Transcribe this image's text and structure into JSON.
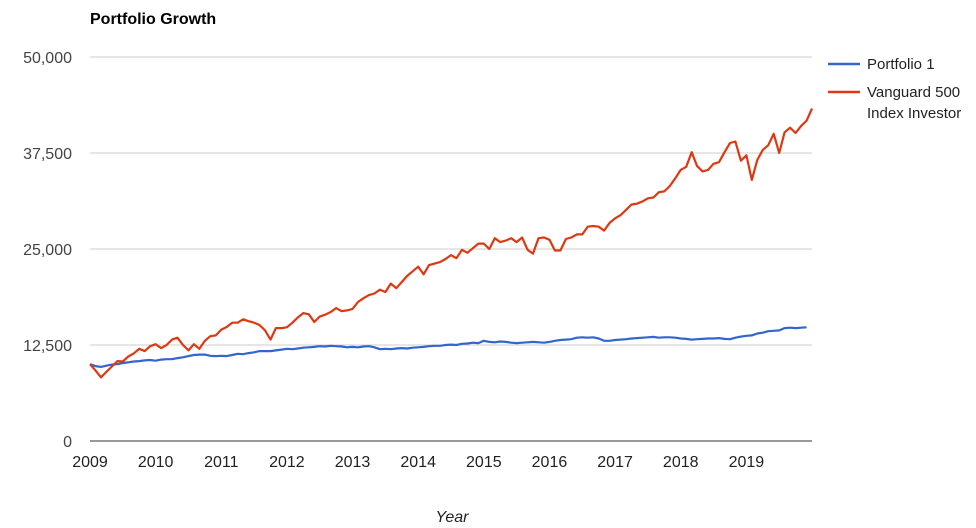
{
  "chart_data": {
    "type": "line",
    "title": "Portfolio Growth",
    "xlabel": "Year",
    "ylabel": "",
    "ylim": [
      0,
      50000
    ],
    "yticks": [
      0,
      12500,
      25000,
      37500,
      50000
    ],
    "ytick_labels": [
      "0",
      "12,500",
      "25,000",
      "37,500",
      "50,000"
    ],
    "xticks": [
      "2009",
      "2010",
      "2011",
      "2012",
      "2013",
      "2014",
      "2015",
      "2016",
      "2017",
      "2018",
      "2019"
    ],
    "xlim": [
      2009,
      2020
    ],
    "grid": true,
    "legend_position": "right",
    "series": [
      {
        "name": "Portfolio 1",
        "color": "#3366cc",
        "points": [
          [
            2009.0,
            10000
          ],
          [
            2009.083,
            9750
          ],
          [
            2009.167,
            9650
          ],
          [
            2009.25,
            9800
          ],
          [
            2009.333,
            9950
          ],
          [
            2009.417,
            10000
          ],
          [
            2009.5,
            10150
          ],
          [
            2009.583,
            10250
          ],
          [
            2009.667,
            10350
          ],
          [
            2009.75,
            10400
          ],
          [
            2009.833,
            10500
          ],
          [
            2009.917,
            10550
          ],
          [
            2010.0,
            10450
          ],
          [
            2010.083,
            10600
          ],
          [
            2010.167,
            10650
          ],
          [
            2010.25,
            10650
          ],
          [
            2010.333,
            10800
          ],
          [
            2010.417,
            10900
          ],
          [
            2010.5,
            11050
          ],
          [
            2010.583,
            11200
          ],
          [
            2010.667,
            11250
          ],
          [
            2010.75,
            11250
          ],
          [
            2010.833,
            11100
          ],
          [
            2010.917,
            11050
          ],
          [
            2011.0,
            11100
          ],
          [
            2011.083,
            11050
          ],
          [
            2011.167,
            11200
          ],
          [
            2011.25,
            11350
          ],
          [
            2011.333,
            11300
          ],
          [
            2011.417,
            11450
          ],
          [
            2011.5,
            11550
          ],
          [
            2011.583,
            11700
          ],
          [
            2011.667,
            11700
          ],
          [
            2011.75,
            11700
          ],
          [
            2011.833,
            11800
          ],
          [
            2011.917,
            11900
          ],
          [
            2012.0,
            12000
          ],
          [
            2012.083,
            11950
          ],
          [
            2012.167,
            12050
          ],
          [
            2012.25,
            12150
          ],
          [
            2012.333,
            12200
          ],
          [
            2012.417,
            12250
          ],
          [
            2012.5,
            12350
          ],
          [
            2012.583,
            12300
          ],
          [
            2012.667,
            12400
          ],
          [
            2012.75,
            12350
          ],
          [
            2012.833,
            12300
          ],
          [
            2012.917,
            12200
          ],
          [
            2013.0,
            12250
          ],
          [
            2013.083,
            12200
          ],
          [
            2013.167,
            12300
          ],
          [
            2013.25,
            12350
          ],
          [
            2013.333,
            12200
          ],
          [
            2013.417,
            11950
          ],
          [
            2013.5,
            12000
          ],
          [
            2013.583,
            11950
          ],
          [
            2013.667,
            12050
          ],
          [
            2013.75,
            12100
          ],
          [
            2013.833,
            12050
          ],
          [
            2013.917,
            12150
          ],
          [
            2014.0,
            12200
          ],
          [
            2014.083,
            12250
          ],
          [
            2014.167,
            12350
          ],
          [
            2014.25,
            12400
          ],
          [
            2014.333,
            12400
          ],
          [
            2014.417,
            12500
          ],
          [
            2014.5,
            12550
          ],
          [
            2014.583,
            12500
          ],
          [
            2014.667,
            12650
          ],
          [
            2014.75,
            12700
          ],
          [
            2014.833,
            12800
          ],
          [
            2014.917,
            12750
          ],
          [
            2015.0,
            13050
          ],
          [
            2015.083,
            12900
          ],
          [
            2015.167,
            12850
          ],
          [
            2015.25,
            12950
          ],
          [
            2015.333,
            12900
          ],
          [
            2015.417,
            12800
          ],
          [
            2015.5,
            12750
          ],
          [
            2015.583,
            12800
          ],
          [
            2015.667,
            12850
          ],
          [
            2015.75,
            12900
          ],
          [
            2015.833,
            12850
          ],
          [
            2015.917,
            12800
          ],
          [
            2016.0,
            12900
          ],
          [
            2016.083,
            13050
          ],
          [
            2016.167,
            13150
          ],
          [
            2016.25,
            13200
          ],
          [
            2016.333,
            13250
          ],
          [
            2016.417,
            13450
          ],
          [
            2016.5,
            13500
          ],
          [
            2016.583,
            13450
          ],
          [
            2016.667,
            13500
          ],
          [
            2016.75,
            13350
          ],
          [
            2016.833,
            13050
          ],
          [
            2016.917,
            13050
          ],
          [
            2017.0,
            13150
          ],
          [
            2017.083,
            13200
          ],
          [
            2017.167,
            13250
          ],
          [
            2017.25,
            13350
          ],
          [
            2017.333,
            13400
          ],
          [
            2017.417,
            13450
          ],
          [
            2017.5,
            13500
          ],
          [
            2017.583,
            13550
          ],
          [
            2017.667,
            13450
          ],
          [
            2017.75,
            13500
          ],
          [
            2017.833,
            13500
          ],
          [
            2017.917,
            13450
          ],
          [
            2018.0,
            13350
          ],
          [
            2018.083,
            13300
          ],
          [
            2018.167,
            13200
          ],
          [
            2018.25,
            13250
          ],
          [
            2018.333,
            13300
          ],
          [
            2018.417,
            13350
          ],
          [
            2018.5,
            13350
          ],
          [
            2018.583,
            13400
          ],
          [
            2018.667,
            13300
          ],
          [
            2018.75,
            13250
          ],
          [
            2018.833,
            13450
          ],
          [
            2018.917,
            13600
          ],
          [
            2019.0,
            13700
          ],
          [
            2019.083,
            13750
          ],
          [
            2019.167,
            14000
          ],
          [
            2019.25,
            14100
          ],
          [
            2019.333,
            14300
          ],
          [
            2019.417,
            14350
          ],
          [
            2019.5,
            14400
          ],
          [
            2019.583,
            14700
          ],
          [
            2019.667,
            14750
          ],
          [
            2019.75,
            14700
          ],
          [
            2019.833,
            14750
          ],
          [
            2019.917,
            14800
          ]
        ]
      },
      {
        "name": "Vanguard 500 Index Investor",
        "color": "#dc3912",
        "points": [
          [
            2009.0,
            10000
          ],
          [
            2009.083,
            9200
          ],
          [
            2009.167,
            8300
          ],
          [
            2009.25,
            9000
          ],
          [
            2009.333,
            9700
          ],
          [
            2009.417,
            10400
          ],
          [
            2009.5,
            10350
          ],
          [
            2009.583,
            11000
          ],
          [
            2009.667,
            11400
          ],
          [
            2009.75,
            12000
          ],
          [
            2009.833,
            11700
          ],
          [
            2009.917,
            12350
          ],
          [
            2010.0,
            12600
          ],
          [
            2010.083,
            12100
          ],
          [
            2010.167,
            12500
          ],
          [
            2010.25,
            13200
          ],
          [
            2010.333,
            13450
          ],
          [
            2010.417,
            12500
          ],
          [
            2010.5,
            11800
          ],
          [
            2010.583,
            12600
          ],
          [
            2010.667,
            12000
          ],
          [
            2010.75,
            13050
          ],
          [
            2010.833,
            13650
          ],
          [
            2010.917,
            13750
          ],
          [
            2011.0,
            14500
          ],
          [
            2011.083,
            14850
          ],
          [
            2011.167,
            15400
          ],
          [
            2011.25,
            15400
          ],
          [
            2011.333,
            15850
          ],
          [
            2011.417,
            15600
          ],
          [
            2011.5,
            15400
          ],
          [
            2011.583,
            15100
          ],
          [
            2011.667,
            14400
          ],
          [
            2011.75,
            13200
          ],
          [
            2011.833,
            14700
          ],
          [
            2011.917,
            14700
          ],
          [
            2012.0,
            14800
          ],
          [
            2012.083,
            15400
          ],
          [
            2012.167,
            16100
          ],
          [
            2012.25,
            16650
          ],
          [
            2012.333,
            16500
          ],
          [
            2012.417,
            15500
          ],
          [
            2012.5,
            16200
          ],
          [
            2012.583,
            16450
          ],
          [
            2012.667,
            16800
          ],
          [
            2012.75,
            17300
          ],
          [
            2012.833,
            16900
          ],
          [
            2012.917,
            17000
          ],
          [
            2013.0,
            17200
          ],
          [
            2013.083,
            18100
          ],
          [
            2013.167,
            18600
          ],
          [
            2013.25,
            19000
          ],
          [
            2013.333,
            19200
          ],
          [
            2013.417,
            19700
          ],
          [
            2013.5,
            19400
          ],
          [
            2013.583,
            20500
          ],
          [
            2013.667,
            19900
          ],
          [
            2013.75,
            20700
          ],
          [
            2013.833,
            21500
          ],
          [
            2013.917,
            22100
          ],
          [
            2014.0,
            22700
          ],
          [
            2014.083,
            21700
          ],
          [
            2014.167,
            22900
          ],
          [
            2014.25,
            23100
          ],
          [
            2014.333,
            23300
          ],
          [
            2014.417,
            23700
          ],
          [
            2014.5,
            24200
          ],
          [
            2014.583,
            23800
          ],
          [
            2014.667,
            24900
          ],
          [
            2014.75,
            24500
          ],
          [
            2014.833,
            25100
          ],
          [
            2014.917,
            25700
          ],
          [
            2015.0,
            25700
          ],
          [
            2015.083,
            25000
          ],
          [
            2015.167,
            26400
          ],
          [
            2015.25,
            25900
          ],
          [
            2015.333,
            26100
          ],
          [
            2015.417,
            26400
          ],
          [
            2015.5,
            25900
          ],
          [
            2015.583,
            26500
          ],
          [
            2015.667,
            24900
          ],
          [
            2015.75,
            24400
          ],
          [
            2015.833,
            26400
          ],
          [
            2015.917,
            26500
          ],
          [
            2016.0,
            26200
          ],
          [
            2016.083,
            24800
          ],
          [
            2016.167,
            24800
          ],
          [
            2016.25,
            26300
          ],
          [
            2016.333,
            26500
          ],
          [
            2016.417,
            26900
          ],
          [
            2016.5,
            26900
          ],
          [
            2016.583,
            27900
          ],
          [
            2016.667,
            28000
          ],
          [
            2016.75,
            27900
          ],
          [
            2016.833,
            27400
          ],
          [
            2016.917,
            28400
          ],
          [
            2017.0,
            29000
          ],
          [
            2017.083,
            29400
          ],
          [
            2017.167,
            30100
          ],
          [
            2017.25,
            30800
          ],
          [
            2017.333,
            30900
          ],
          [
            2017.417,
            31200
          ],
          [
            2017.5,
            31600
          ],
          [
            2017.583,
            31700
          ],
          [
            2017.667,
            32400
          ],
          [
            2017.75,
            32500
          ],
          [
            2017.833,
            33200
          ],
          [
            2017.917,
            34200
          ],
          [
            2018.0,
            35300
          ],
          [
            2018.083,
            35700
          ],
          [
            2018.167,
            37600
          ],
          [
            2018.25,
            35800
          ],
          [
            2018.333,
            35100
          ],
          [
            2018.417,
            35300
          ],
          [
            2018.5,
            36100
          ],
          [
            2018.583,
            36300
          ],
          [
            2018.667,
            37600
          ],
          [
            2018.75,
            38800
          ],
          [
            2018.833,
            39000
          ],
          [
            2018.917,
            36500
          ],
          [
            2019.0,
            37200
          ],
          [
            2019.083,
            34000
          ],
          [
            2019.167,
            36600
          ],
          [
            2019.25,
            37900
          ],
          [
            2019.333,
            38500
          ],
          [
            2019.417,
            40000
          ],
          [
            2019.5,
            37500
          ],
          [
            2019.583,
            40200
          ],
          [
            2019.667,
            40800
          ],
          [
            2019.75,
            40100
          ],
          [
            2019.833,
            41000
          ],
          [
            2019.917,
            41700
          ],
          [
            2020.0,
            43300
          ]
        ]
      }
    ]
  }
}
